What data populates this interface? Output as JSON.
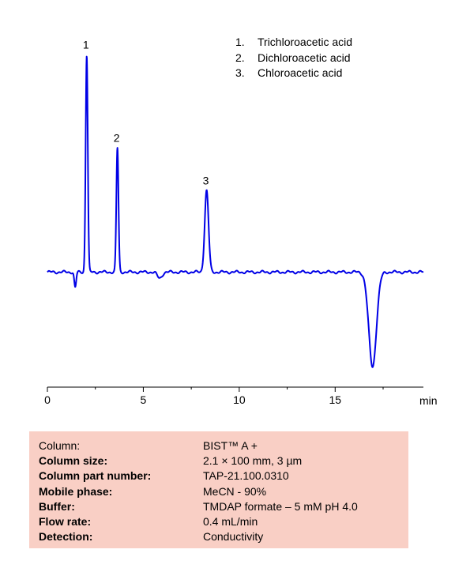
{
  "chart_data": {
    "type": "line",
    "title": "",
    "xlabel": "min",
    "ylabel": "",
    "xlim": [
      0,
      19.6
    ],
    "ylim": [
      -1.28,
      2.95
    ],
    "xticks": [
      0,
      5,
      10,
      15
    ],
    "grid": false,
    "line_color": "#0000e6",
    "baseline": 0,
    "series": [
      {
        "peaks": [
          {
            "label": "1",
            "x": 2.05,
            "height": 2.8,
            "sigma": 0.055
          },
          {
            "label": "2",
            "x": 3.65,
            "height": 1.6,
            "sigma": 0.055
          },
          {
            "label": "3",
            "x": 8.3,
            "height": 1.05,
            "sigma": 0.1
          }
        ],
        "dips": [
          {
            "x": 1.45,
            "depth": 0.2,
            "sigma": 0.05
          },
          {
            "x": 5.85,
            "depth": 0.08,
            "sigma": 0.12
          },
          {
            "x": 16.95,
            "depth": 1.22,
            "sigma": 0.2
          }
        ]
      }
    ]
  },
  "legend": {
    "items": [
      {
        "num": "1.",
        "name": "Trichloroacetic acid"
      },
      {
        "num": "2.",
        "name": "Dichloroacetic acid"
      },
      {
        "num": "3.",
        "name": "Chloroacetic acid"
      }
    ]
  },
  "conditions": [
    {
      "label": "Column:",
      "value": "BIST™ A +"
    },
    {
      "label": "Column size:",
      "value": "2.1 × 100 mm, 3 µm"
    },
    {
      "label": "Column part number:",
      "value": "TAP-21.100.0310"
    },
    {
      "label": "Mobile phase:",
      "value": "MeCN  - 90%"
    },
    {
      "label": "Buffer:",
      "value": "TMDAP formate   – 5 mM  pH 4.0"
    },
    {
      "label": "Flow rate:",
      "value": "0.4  mL/min"
    },
    {
      "label": "Detection:",
      "value": "Conductivity"
    }
  ]
}
